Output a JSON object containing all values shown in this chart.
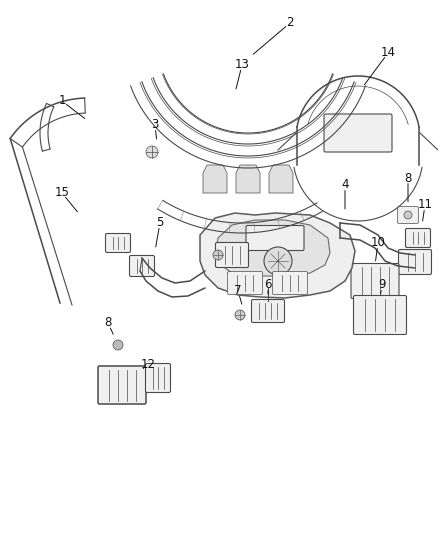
{
  "bg_color": "#ffffff",
  "line_color": "#4a4a4a",
  "label_color": "#111111",
  "label_fontsize": 8.5,
  "fig_width": 4.38,
  "fig_height": 5.33,
  "dpi": 100
}
